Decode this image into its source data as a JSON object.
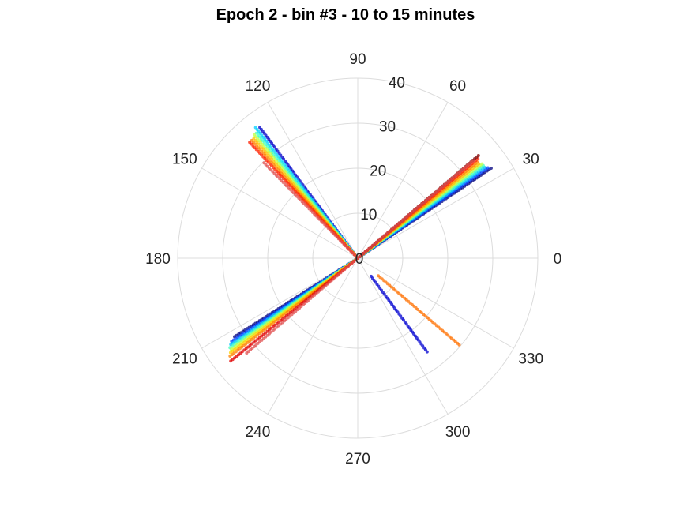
{
  "chart_data": {
    "type": "scatter",
    "coordinate_system": "polar",
    "title": "Epoch 2 - bin #3 - 10 to 15 minutes",
    "theta_unit": "degrees",
    "r_range": [
      0,
      40
    ],
    "r_ticks": [
      "0",
      "10",
      "20",
      "30",
      "40"
    ],
    "theta_ticks": [
      "0",
      "30",
      "60",
      "90",
      "120",
      "150",
      "180",
      "210",
      "240",
      "270",
      "300",
      "330"
    ],
    "grid": true,
    "colormap": "jet",
    "marker_radius": 2,
    "series": [
      {
        "theta": 34.0,
        "r_max": 36.0,
        "color": "#00007f"
      },
      {
        "theta": 34.8,
        "r_max": 35.5,
        "color": "#0040ff"
      },
      {
        "theta": 35.6,
        "r_max": 35.2,
        "color": "#00bfff"
      },
      {
        "theta": 36.4,
        "r_max": 35.0,
        "color": "#40ffbf"
      },
      {
        "theta": 37.2,
        "r_max": 34.8,
        "color": "#bfff40"
      },
      {
        "theta": 38.0,
        "r_max": 34.6,
        "color": "#ffbf00"
      },
      {
        "theta": 38.8,
        "r_max": 34.6,
        "color": "#ff8000"
      },
      {
        "theta": 39.6,
        "r_max": 34.9,
        "color": "#ff2000"
      },
      {
        "theta": 40.4,
        "r_max": 35.6,
        "color": "#7f0000"
      },
      {
        "theta": 40.2,
        "r_max": 33.8,
        "color": "#e05050"
      },
      {
        "theta": 126.8,
        "r_max": 36.5,
        "color": "#0000c8"
      },
      {
        "theta": 128.0,
        "r_max": 37.0,
        "color": "#00d0ff"
      },
      {
        "theta": 129.0,
        "r_max": 36.2,
        "color": "#40ffbf"
      },
      {
        "theta": 130.0,
        "r_max": 35.8,
        "color": "#bfff40"
      },
      {
        "theta": 131.0,
        "r_max": 35.6,
        "color": "#ffbf00"
      },
      {
        "theta": 132.0,
        "r_max": 35.4,
        "color": "#ff8000"
      },
      {
        "theta": 133.0,
        "r_max": 35.4,
        "color": "#ff2000"
      },
      {
        "theta": 134.5,
        "r_max": 30.0,
        "color": "#e05050"
      },
      {
        "theta": 212.5,
        "r_max": 33.0,
        "color": "#000080"
      },
      {
        "theta": 213.4,
        "r_max": 34.0,
        "color": "#0040ff"
      },
      {
        "theta": 214.2,
        "r_max": 34.4,
        "color": "#00bfff"
      },
      {
        "theta": 215.0,
        "r_max": 34.8,
        "color": "#40ffbf"
      },
      {
        "theta": 215.8,
        "r_max": 35.2,
        "color": "#bfff40"
      },
      {
        "theta": 216.6,
        "r_max": 35.6,
        "color": "#ffd000"
      },
      {
        "theta": 217.5,
        "r_max": 36.2,
        "color": "#ff8000"
      },
      {
        "theta": 219.0,
        "r_max": 36.5,
        "color": "#e00000"
      },
      {
        "theta": 220.5,
        "r_max": 33.0,
        "color": "#e05050"
      },
      {
        "theta": 306.5,
        "r_min": 5.0,
        "r_max": 26.0,
        "color": "#0000d0"
      },
      {
        "theta": 319.5,
        "r_min": 6.0,
        "r_max": 30.0,
        "color": "#ff7000"
      }
    ]
  }
}
